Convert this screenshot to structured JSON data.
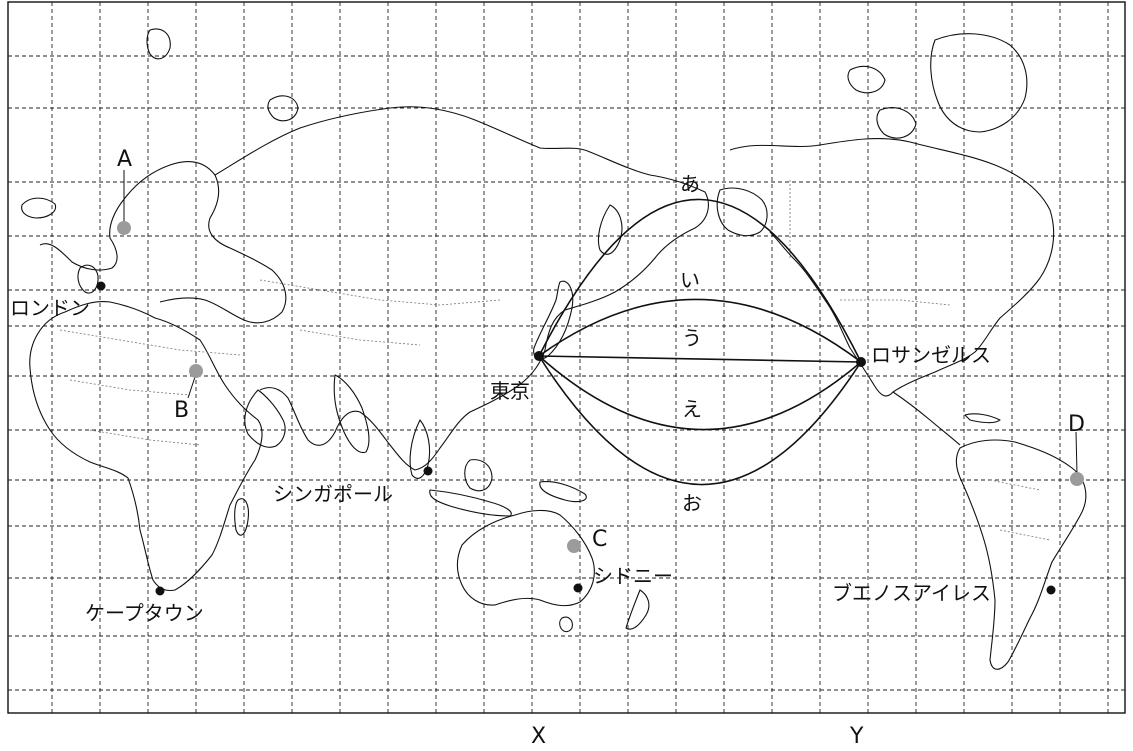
{
  "map": {
    "cities": {
      "london": "ロンドン",
      "capetown": "ケープタウン",
      "singapore": "シンガポール",
      "sydney": "シドニー",
      "tokyo": "東京",
      "losangeles": "ロサンゼルス",
      "buenosaires": "ブエノスアイレス"
    },
    "points": {
      "a": "A",
      "b": "B",
      "c": "C",
      "d": "D"
    },
    "routes": {
      "a": "あ",
      "i": "い",
      "u": "う",
      "e": "え",
      "o": "お"
    },
    "axis": {
      "x": "X",
      "y": "Y"
    },
    "colors": {
      "city": "#111111",
      "marker": "#9b9b9b",
      "grid": "#222222"
    }
  }
}
